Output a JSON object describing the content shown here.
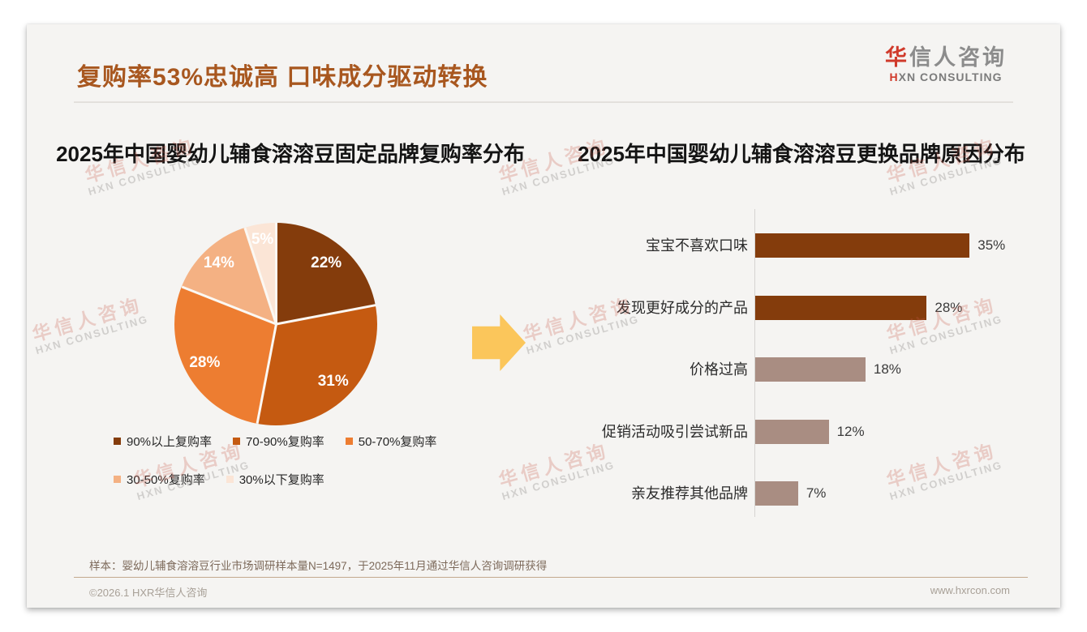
{
  "header": {
    "title": "复购率53%忠诚高 口味成分驱动转换",
    "logo_cn_red": "华",
    "logo_cn_gray": "信人咨询",
    "logo_en_red": "H",
    "logo_en_gray": "XN CONSULTING"
  },
  "watermark": {
    "cn": "华信人咨询",
    "en": "HXN CONSULTING"
  },
  "colors": {
    "title": "#A8571F",
    "card_bg": "#F5F4F2",
    "arrow": "#FBC65B",
    "axis": "#D6D4D1"
  },
  "chart_data": [
    {
      "type": "pie",
      "title": "2025年中国婴幼儿辅食溶溶豆固定品牌复购率分布",
      "labels": [
        "90%以上复购率",
        "70-90%复购率",
        "50-70%复购率",
        "30-50%复购率",
        "30%以下复购率"
      ],
      "values": [
        22,
        31,
        28,
        14,
        5
      ],
      "value_labels": [
        "22%",
        "31%",
        "28%",
        "14%",
        "5%"
      ],
      "slice_colors": [
        "#843C0C",
        "#C55A11",
        "#ED7D31",
        "#F4B183",
        "#FBE5D6"
      ],
      "start_angle_deg": 0,
      "direction": "clockwise",
      "legend_position": "bottom",
      "legend_rows": [
        [
          0,
          1,
          2
        ],
        [
          3,
          4
        ]
      ]
    },
    {
      "type": "bar",
      "orientation": "horizontal",
      "title": "2025年中国婴幼儿辅食溶溶豆更换品牌原因分布",
      "categories": [
        "宝宝不喜欢口味",
        "发现更好成分的产品",
        "价格过高",
        "促销活动吸引尝试新品",
        "亲友推荐其他品牌"
      ],
      "values": [
        35,
        28,
        18,
        12,
        7
      ],
      "value_labels": [
        "35%",
        "28%",
        "18%",
        "12%",
        "7%"
      ],
      "bar_colors": [
        "#843C0C",
        "#843C0C",
        "#A98D82",
        "#A98D82",
        "#A98D82"
      ],
      "xlim": [
        0,
        40
      ],
      "grid": false,
      "data_labels": "outside-end"
    }
  ],
  "footnote": "样本：婴幼儿辅食溶溶豆行业市场调研样本量N=1497，于2025年11月通过华信人咨询调研获得",
  "footer": {
    "copyright": "©2026.1 HXR华信人咨询",
    "website": "www.hxrcon.com"
  }
}
